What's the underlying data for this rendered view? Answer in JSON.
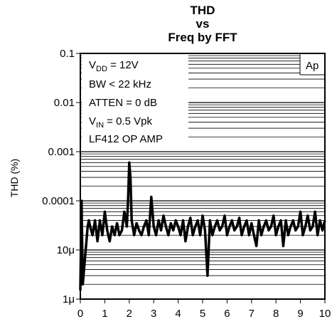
{
  "chart_data": {
    "type": "line",
    "title_lines": [
      "THD",
      "vs",
      "Freq by FFT"
    ],
    "ylabel": "THD (%)",
    "xlabel": "",
    "x_scale": "linear",
    "y_scale": "log",
    "xlim": [
      0,
      10
    ],
    "ylim": [
      1e-06,
      0.1
    ],
    "x_ticks": [
      0,
      1,
      2,
      3,
      4,
      5,
      6,
      7,
      8,
      9,
      10
    ],
    "x_tick_labels": [
      "0",
      "1",
      "2",
      "3",
      "4",
      "5",
      "6",
      "7",
      "8",
      "9",
      "10"
    ],
    "y_ticks": [
      0.1,
      0.01,
      0.001,
      0.0001,
      1e-05,
      1e-06
    ],
    "y_tick_labels": [
      "0.1",
      "0.01",
      "0.001",
      "0.0001",
      "10μ",
      "1μ"
    ],
    "grid": "log-minor horizontal, right portion",
    "badge": "Ap",
    "annotations": [
      {
        "base": "V",
        "sub": "DD",
        "rest": " = 12V"
      },
      {
        "base": "BW < 22 kHz",
        "sub": "",
        "rest": ""
      },
      {
        "base": "ATTEN = 0 dB",
        "sub": "",
        "rest": ""
      },
      {
        "base": "V",
        "sub": "IN",
        "rest": " = 0.5 Vpk"
      },
      {
        "base": "LF412 OP AMP",
        "sub": "",
        "rest": ""
      }
    ],
    "series": [
      {
        "x": [
          0,
          0.05,
          0.1,
          0.15,
          0.2,
          0.25,
          0.3,
          0.35,
          0.4,
          0.5,
          0.6,
          0.7,
          0.8,
          0.9,
          1.0,
          1.1,
          1.2,
          1.3,
          1.4,
          1.5,
          1.6,
          1.7,
          1.8,
          1.9,
          1.95,
          2.0,
          2.05,
          2.1,
          2.2,
          2.3,
          2.4,
          2.5,
          2.6,
          2.7,
          2.8,
          2.9,
          3.0,
          3.1,
          3.2,
          3.3,
          3.4,
          3.5,
          3.6,
          3.7,
          3.8,
          3.9,
          4.0,
          4.1,
          4.2,
          4.3,
          4.4,
          4.5,
          4.6,
          4.7,
          4.8,
          4.9,
          5.0,
          5.1,
          5.2,
          5.3,
          5.4,
          5.5,
          5.6,
          5.7,
          5.8,
          5.9,
          6.0,
          6.1,
          6.2,
          6.3,
          6.4,
          6.5,
          6.6,
          6.7,
          6.8,
          6.9,
          7.0,
          7.1,
          7.2,
          7.3,
          7.4,
          7.5,
          7.6,
          7.7,
          7.8,
          7.9,
          8.0,
          8.1,
          8.2,
          8.3,
          8.4,
          8.5,
          8.6,
          8.7,
          8.8,
          8.9,
          9.0,
          9.1,
          9.2,
          9.3,
          9.4,
          9.5,
          9.6,
          9.7,
          9.8,
          9.9,
          10.0
        ],
        "y": [
          1.5e-06,
          0.0001,
          2e-06,
          4e-06,
          8e-06,
          1.5e-05,
          3e-05,
          4e-05,
          3e-05,
          2e-05,
          4e-05,
          1.5e-05,
          4e-05,
          2e-05,
          6e-05,
          2.5e-05,
          1.5e-05,
          3e-05,
          2e-05,
          3.5e-05,
          2e-05,
          2.5e-05,
          6e-05,
          3e-05,
          0.0001,
          0.0006,
          0.0003,
          4e-05,
          2e-05,
          3.5e-05,
          2.5e-05,
          2e-05,
          3e-05,
          4e-05,
          2e-05,
          0.00012,
          3e-05,
          2e-05,
          4e-05,
          2.5e-05,
          5e-05,
          3e-05,
          2e-05,
          3.5e-05,
          2.5e-05,
          4e-05,
          3e-05,
          2e-05,
          4e-05,
          1.5e-05,
          3e-05,
          4.5e-05,
          2e-05,
          3e-05,
          4e-05,
          2e-05,
          5e-05,
          2.5e-05,
          3e-06,
          4e-05,
          2e-05,
          3e-05,
          4e-05,
          2.5e-05,
          3e-05,
          5e-05,
          2e-05,
          3e-05,
          4e-05,
          2.5e-05,
          3e-05,
          4.5e-05,
          2e-05,
          3e-05,
          4e-05,
          2e-05,
          3.5e-05,
          2e-05,
          1.2e-05,
          4e-05,
          2e-05,
          3e-05,
          4e-05,
          2.5e-05,
          3e-05,
          5e-05,
          2e-05,
          3e-05,
          4e-05,
          1.2e-05,
          4e-05,
          2e-05,
          3e-05,
          4e-05,
          2.5e-05,
          3e-05,
          6e-05,
          2e-05,
          3e-05,
          5e-05,
          2.5e-05,
          3e-05,
          6e-05,
          2e-05,
          4e-05,
          2.5e-05,
          4e-05
        ]
      }
    ]
  }
}
